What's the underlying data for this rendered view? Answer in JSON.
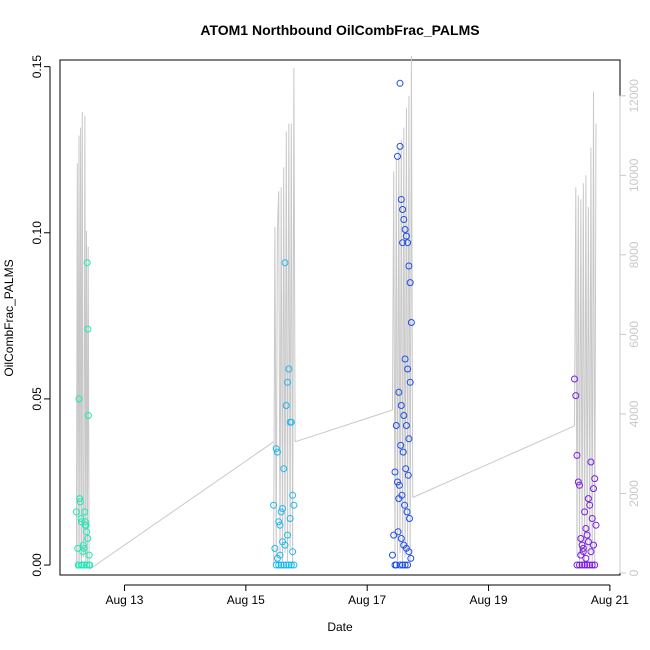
{
  "chart_data": {
    "type": "scatter",
    "title": "ATOM1 Northbound OilCombFrac_PALMS",
    "xlabel": "Date",
    "ylabel": "OilCombFrac_PALMS",
    "x_is_date": true,
    "xlim": [
      "2016-08-11T22:30",
      "2016-08-21T04:00"
    ],
    "x_ticks": [
      {
        "value": "2016-08-13T00:00",
        "label": "Aug 13"
      },
      {
        "value": "2016-08-15T00:00",
        "label": "Aug 15"
      },
      {
        "value": "2016-08-17T00:00",
        "label": "Aug 17"
      },
      {
        "value": "2016-08-19T00:00",
        "label": "Aug 19"
      },
      {
        "value": "2016-08-21T00:00",
        "label": "Aug 21"
      }
    ],
    "ylim": [
      -0.003,
      0.152
    ],
    "y_ticks": [
      {
        "value": 0.0,
        "label": "0.00"
      },
      {
        "value": 0.05,
        "label": "0.05"
      },
      {
        "value": 0.1,
        "label": "0.10"
      },
      {
        "value": 0.15,
        "label": "0.15"
      }
    ],
    "y2_ticks": [
      {
        "value": 0,
        "label": "0"
      },
      {
        "value": 2000,
        "label": "2000"
      },
      {
        "value": 4000,
        "label": "4000"
      },
      {
        "value": 6000,
        "label": "6000"
      },
      {
        "value": 8000,
        "label": "8000"
      },
      {
        "value": 10000,
        "label": "10000"
      },
      {
        "value": 12000,
        "label": "12000"
      }
    ],
    "y2lim": [
      -50,
      12900
    ],
    "grid": false,
    "legend": "none",
    "altitude_color": "#c8c8c8",
    "series": [
      {
        "color": "#1de9b6",
        "x": [
          "2016-08-12T05:00",
          "2016-08-12T05:30",
          "2016-08-12T05:45",
          "2016-08-12T06:00",
          "2016-08-12T06:15",
          "2016-08-12T06:30",
          "2016-08-12T06:45",
          "2016-08-12T07:00",
          "2016-08-12T07:15",
          "2016-08-12T07:30",
          "2016-08-12T07:45",
          "2016-08-12T08:00",
          "2016-08-12T08:15",
          "2016-08-12T08:30",
          "2016-08-12T08:45",
          "2016-08-12T09:00",
          "2016-08-12T09:15",
          "2016-08-12T09:30",
          "2016-08-12T09:45",
          "2016-08-12T10:00",
          "2016-08-12T10:15",
          "2016-08-12T06:00",
          "2016-08-12T07:00",
          "2016-08-12T08:00",
          "2016-08-12T09:00",
          "2016-08-12T10:00",
          "2016-08-12T09:30",
          "2016-08-12T08:30"
        ],
        "y": [
          0.016,
          0.005,
          0.0,
          0.05,
          0.02,
          0.019,
          0.014,
          0.013,
          0.0,
          0.004,
          0.006,
          0.005,
          0.016,
          0.013,
          0.012,
          0.01,
          0.091,
          0.071,
          0.045,
          0.003,
          0.0,
          0.0,
          0.0,
          0.0,
          0.0,
          0.0,
          0.008,
          0.012
        ]
      },
      {
        "color": "#1eb8f0",
        "x": [
          "2016-08-15T11:00",
          "2016-08-15T11:30",
          "2016-08-15T12:00",
          "2016-08-15T12:30",
          "2016-08-15T13:00",
          "2016-08-15T13:30",
          "2016-08-15T14:00",
          "2016-08-15T14:30",
          "2016-08-15T15:00",
          "2016-08-15T15:30",
          "2016-08-15T16:00",
          "2016-08-15T16:30",
          "2016-08-15T17:00",
          "2016-08-15T17:30",
          "2016-08-15T18:00",
          "2016-08-15T18:30",
          "2016-08-15T19:00",
          "2016-08-15T12:00",
          "2016-08-15T13:00",
          "2016-08-15T14:00",
          "2016-08-15T15:00",
          "2016-08-15T16:00",
          "2016-08-15T17:00",
          "2016-08-15T18:00",
          "2016-08-15T19:00",
          "2016-08-15T13:30",
          "2016-08-15T15:30",
          "2016-08-15T16:30",
          "2016-08-15T17:30",
          "2016-08-15T18:30",
          "2016-08-15T14:30",
          "2016-08-15T12:30"
        ],
        "y": [
          0.018,
          0.005,
          0.035,
          0.034,
          0.013,
          0.012,
          0.016,
          0.017,
          0.029,
          0.091,
          0.048,
          0.055,
          0.059,
          0.043,
          0.043,
          0.021,
          0.018,
          0.0,
          0.0,
          0.0,
          0.0,
          0.0,
          0.0,
          0.0,
          0.0,
          0.003,
          0.006,
          0.009,
          0.014,
          0.004,
          0.007,
          0.002
        ]
      },
      {
        "color": "#1f4fe8",
        "x": [
          "2016-08-17T10:00",
          "2016-08-17T10:30",
          "2016-08-17T11:00",
          "2016-08-17T11:30",
          "2016-08-17T12:00",
          "2016-08-17T12:30",
          "2016-08-17T13:00",
          "2016-08-17T13:30",
          "2016-08-17T14:00",
          "2016-08-17T14:30",
          "2016-08-17T15:00",
          "2016-08-17T15:30",
          "2016-08-17T16:00",
          "2016-08-17T16:30",
          "2016-08-17T17:00",
          "2016-08-17T17:30",
          "2016-08-17T12:00",
          "2016-08-17T13:00",
          "2016-08-17T14:00",
          "2016-08-17T15:00",
          "2016-08-17T16:00",
          "2016-08-17T17:00",
          "2016-08-17T12:30",
          "2016-08-17T13:30",
          "2016-08-17T14:30",
          "2016-08-17T15:30",
          "2016-08-17T16:30",
          "2016-08-17T13:15",
          "2016-08-17T14:15",
          "2016-08-17T15:15",
          "2016-08-17T16:15",
          "2016-08-17T12:45",
          "2016-08-17T13:45",
          "2016-08-17T14:45",
          "2016-08-17T15:45",
          "2016-08-17T16:45",
          "2016-08-17T13:00",
          "2016-08-17T14:00",
          "2016-08-17T15:00",
          "2016-08-17T16:00",
          "2016-08-17T11:30",
          "2016-08-17T12:15",
          "2016-08-17T13:30",
          "2016-08-17T14:30",
          "2016-08-17T15:30",
          "2016-08-17T16:30",
          "2016-08-17T17:15",
          "2016-08-17T11:00"
        ],
        "y": [
          0.003,
          0.009,
          0.028,
          0.042,
          0.025,
          0.02,
          0.145,
          0.11,
          0.107,
          0.104,
          0.101,
          0.099,
          0.097,
          0.09,
          0.085,
          0.073,
          0.123,
          0.126,
          0.097,
          0.062,
          0.059,
          0.055,
          0.052,
          0.048,
          0.045,
          0.042,
          0.038,
          0.036,
          0.034,
          0.029,
          0.027,
          0.024,
          0.021,
          0.018,
          0.016,
          0.014,
          0.0,
          0.0,
          0.0,
          0.0,
          0.0,
          0.01,
          0.008,
          0.006,
          0.005,
          0.004,
          0.002,
          0.0
        ]
      },
      {
        "color": "#7a1fe0",
        "x": [
          "2016-08-20T10:00",
          "2016-08-20T10:30",
          "2016-08-20T11:00",
          "2016-08-20T11:30",
          "2016-08-20T12:00",
          "2016-08-20T12:30",
          "2016-08-20T13:00",
          "2016-08-20T13:30",
          "2016-08-20T14:00",
          "2016-08-20T14:30",
          "2016-08-20T15:00",
          "2016-08-20T15:30",
          "2016-08-20T16:00",
          "2016-08-20T16:30",
          "2016-08-20T17:00",
          "2016-08-20T17:30",
          "2016-08-20T18:00",
          "2016-08-20T18:30",
          "2016-08-20T11:00",
          "2016-08-20T12:00",
          "2016-08-20T13:00",
          "2016-08-20T14:00",
          "2016-08-20T15:00",
          "2016-08-20T16:00",
          "2016-08-20T17:00",
          "2016-08-20T18:00",
          "2016-08-20T12:30",
          "2016-08-20T13:30",
          "2016-08-20T14:30",
          "2016-08-20T15:30",
          "2016-08-20T16:30",
          "2016-08-20T17:30"
        ],
        "y": [
          0.056,
          0.051,
          0.033,
          0.025,
          0.024,
          0.008,
          0.006,
          0.004,
          0.016,
          0.011,
          0.009,
          0.02,
          0.018,
          0.031,
          0.014,
          0.023,
          0.026,
          0.012,
          0.0,
          0.0,
          0.0,
          0.0,
          0.0,
          0.0,
          0.0,
          0.0,
          0.003,
          0.005,
          0.002,
          0.007,
          0.004,
          0.006
        ]
      }
    ],
    "altitude_flights": [
      {
        "x": [
          "2016-08-12T05:00",
          "2016-08-12T05:20",
          "2016-08-12T05:40",
          "2016-08-12T06:00",
          "2016-08-12T06:20",
          "2016-08-12T06:40",
          "2016-08-12T07:00",
          "2016-08-12T07:20",
          "2016-08-12T07:40",
          "2016-08-12T08:00",
          "2016-08-12T08:20",
          "2016-08-12T08:40",
          "2016-08-12T09:00",
          "2016-08-12T09:20",
          "2016-08-12T09:40",
          "2016-08-12T10:00",
          "2016-08-12T10:20"
        ],
        "alt": [
          100,
          10300,
          200,
          11000,
          300,
          11200,
          150,
          11600,
          400,
          600,
          11500,
          250,
          8600,
          120,
          8200,
          300,
          100
        ]
      },
      {
        "x": [
          "2016-08-15T11:00",
          "2016-08-15T11:30",
          "2016-08-15T12:00",
          "2016-08-15T12:30",
          "2016-08-15T13:00",
          "2016-08-15T13:30",
          "2016-08-15T14:00",
          "2016-08-15T14:30",
          "2016-08-15T15:00",
          "2016-08-15T15:30",
          "2016-08-15T16:00",
          "2016-08-15T16:30",
          "2016-08-15T17:00",
          "2016-08-15T17:30",
          "2016-08-15T18:00",
          "2016-08-15T18:30",
          "2016-08-15T19:00",
          "2016-08-15T19:30"
        ],
        "alt": [
          200,
          8700,
          300,
          8600,
          9600,
          400,
          9700,
          300,
          10200,
          500,
          11100,
          300,
          11300,
          600,
          11300,
          200,
          12700,
          3300
        ]
      },
      {
        "x": [
          "2016-08-17T10:00",
          "2016-08-17T10:30",
          "2016-08-17T11:00",
          "2016-08-17T11:30",
          "2016-08-17T12:00",
          "2016-08-17T12:30",
          "2016-08-17T13:00",
          "2016-08-17T13:30",
          "2016-08-17T14:00",
          "2016-08-17T14:30",
          "2016-08-17T15:00",
          "2016-08-17T15:30",
          "2016-08-17T16:00",
          "2016-08-17T16:30",
          "2016-08-17T17:00",
          "2016-08-17T17:30",
          "2016-08-17T18:00"
        ],
        "alt": [
          4100,
          10100,
          400,
          10400,
          300,
          10700,
          500,
          10900,
          300,
          11200,
          400,
          11700,
          600,
          12000,
          300,
          13000,
          1900
        ]
      },
      {
        "x": [
          "2016-08-20T10:00",
          "2016-08-20T10:30",
          "2016-08-20T11:00",
          "2016-08-20T11:30",
          "2016-08-20T12:00",
          "2016-08-20T12:30",
          "2016-08-20T13:00",
          "2016-08-20T13:30",
          "2016-08-20T14:00",
          "2016-08-20T14:30",
          "2016-08-20T15:00",
          "2016-08-20T15:30",
          "2016-08-20T16:00",
          "2016-08-20T16:30",
          "2016-08-20T17:00",
          "2016-08-20T17:30",
          "2016-08-20T18:00",
          "2016-08-20T18:30"
        ],
        "alt": [
          3700,
          9700,
          400,
          9500,
          300,
          9400,
          500,
          9800,
          300,
          10000,
          600,
          9200,
          400,
          10700,
          300,
          12100,
          200,
          11300
        ]
      }
    ],
    "altitude_transits": [
      {
        "x": [
          "2016-08-12T10:20",
          "2016-08-15T11:00"
        ],
        "alt": [
          100,
          3300
        ]
      },
      {
        "x": [
          "2016-08-15T19:30",
          "2016-08-17T10:00"
        ],
        "alt": [
          3300,
          4100
        ]
      },
      {
        "x": [
          "2016-08-17T18:00",
          "2016-08-20T10:00"
        ],
        "alt": [
          1900,
          3700
        ]
      }
    ]
  }
}
